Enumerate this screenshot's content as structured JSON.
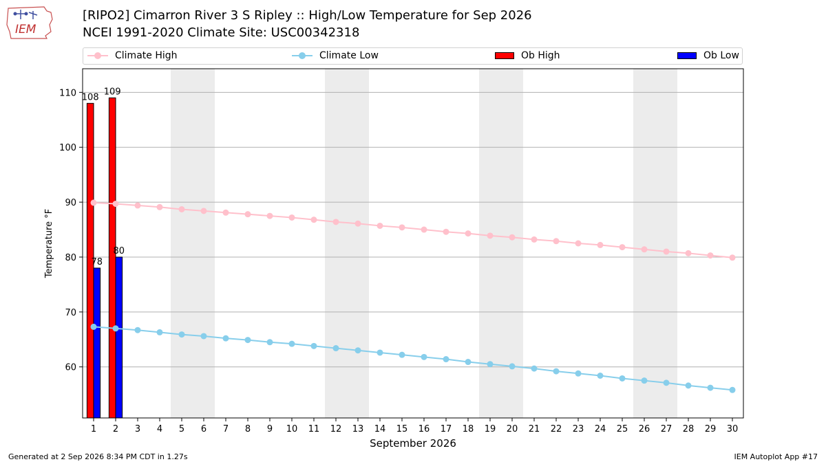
{
  "header": {
    "title_line1": "[RIPO2] Cimarron River 3 S Ripley :: High/Low Temperature for Sep 2026",
    "title_line2": "NCEI 1991-2020 Climate Site: USC00342318"
  },
  "logo": {
    "text": "IEM"
  },
  "footer": {
    "left": "Generated at 2 Sep 2026 8:34 PM CDT in 1.27s",
    "right": "IEM Autoplot App #17"
  },
  "legend": [
    {
      "label": "Climate High",
      "kind": "line",
      "color": "#ffc0cb"
    },
    {
      "label": "Climate Low",
      "kind": "line",
      "color": "#87ceeb"
    },
    {
      "label": "Ob High",
      "kind": "bar",
      "color": "#ff0000"
    },
    {
      "label": "Ob Low",
      "kind": "bar",
      "color": "#0000ff"
    }
  ],
  "chart_data": {
    "type": "bar",
    "xlabel": "September 2026",
    "ylabel": "Temperature °F",
    "xlim": [
      0.5,
      30.5
    ],
    "ylim": [
      50.7,
      114.3
    ],
    "yticks": [
      60,
      70,
      80,
      90,
      100,
      110
    ],
    "xticks": [
      1,
      2,
      3,
      4,
      5,
      6,
      7,
      8,
      9,
      10,
      11,
      12,
      13,
      14,
      15,
      16,
      17,
      18,
      19,
      20,
      21,
      22,
      23,
      24,
      25,
      26,
      27,
      28,
      29,
      30
    ],
    "grid": "horizontal",
    "weekend_shading": [
      [
        5,
        6
      ],
      [
        12,
        13
      ],
      [
        19,
        20
      ],
      [
        26,
        27
      ]
    ],
    "series": [
      {
        "name": "Climate High",
        "type": "line",
        "color": "#ffc0cb",
        "x": [
          1,
          2,
          3,
          4,
          5,
          6,
          7,
          8,
          9,
          10,
          11,
          12,
          13,
          14,
          15,
          16,
          17,
          18,
          19,
          20,
          21,
          22,
          23,
          24,
          25,
          26,
          27,
          28,
          29,
          30
        ],
        "values": [
          89.9,
          89.7,
          89.4,
          89.1,
          88.7,
          88.4,
          88.1,
          87.8,
          87.5,
          87.2,
          86.8,
          86.4,
          86.1,
          85.7,
          85.4,
          85.0,
          84.6,
          84.3,
          83.9,
          83.6,
          83.2,
          82.9,
          82.5,
          82.2,
          81.8,
          81.4,
          81.0,
          80.7,
          80.3,
          79.9
        ]
      },
      {
        "name": "Climate Low",
        "type": "line",
        "color": "#87ceeb",
        "x": [
          1,
          2,
          3,
          4,
          5,
          6,
          7,
          8,
          9,
          10,
          11,
          12,
          13,
          14,
          15,
          16,
          17,
          18,
          19,
          20,
          21,
          22,
          23,
          24,
          25,
          26,
          27,
          28,
          29,
          30
        ],
        "values": [
          67.3,
          67.0,
          66.7,
          66.3,
          65.9,
          65.6,
          65.2,
          64.9,
          64.5,
          64.2,
          63.8,
          63.4,
          63.0,
          62.6,
          62.2,
          61.8,
          61.4,
          60.9,
          60.5,
          60.1,
          59.7,
          59.2,
          58.8,
          58.4,
          57.9,
          57.5,
          57.1,
          56.6,
          56.2,
          55.8
        ]
      },
      {
        "name": "Ob High",
        "type": "bar",
        "color": "#ff0000",
        "x": [
          1,
          2
        ],
        "values": [
          108,
          109
        ],
        "labels": [
          "108",
          "109"
        ]
      },
      {
        "name": "Ob Low",
        "type": "bar",
        "color": "#0000ff",
        "x": [
          1,
          2
        ],
        "values": [
          78,
          80
        ],
        "labels": [
          "78",
          "80"
        ]
      }
    ]
  }
}
